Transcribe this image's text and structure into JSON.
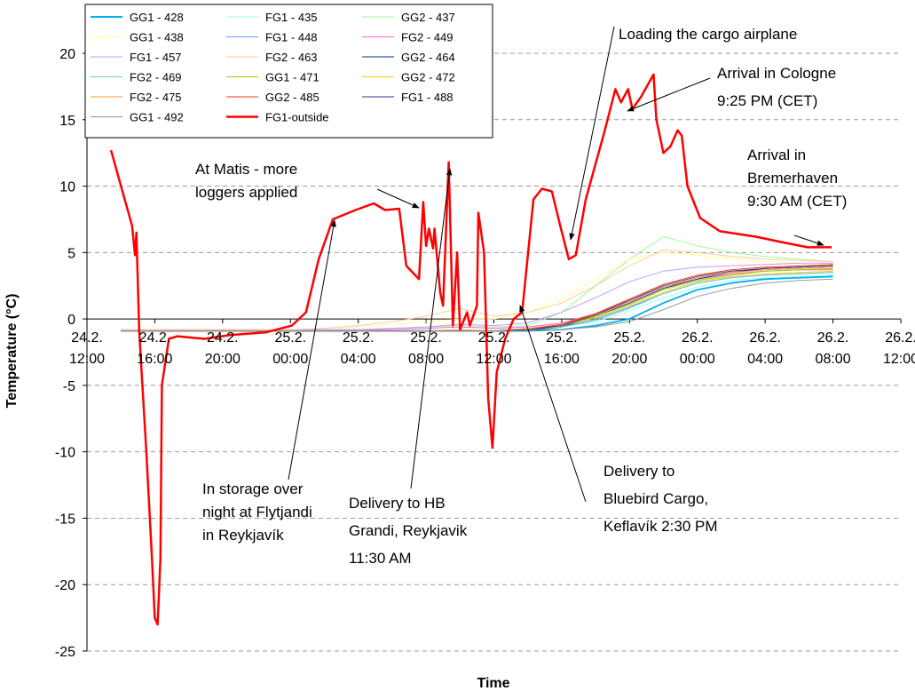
{
  "chart_data": {
    "type": "line",
    "y_label": "Temperature (°C)",
    "x_label": "Time",
    "xlim": [
      "24.2. 12:00",
      "26.2. 12:00"
    ],
    "xticks": [
      "24.2. 12:00",
      "24.2. 16:00",
      "24.2. 20:00",
      "25.2. 00:00",
      "25.2. 04:00",
      "25.2. 08:00",
      "25.2. 12:00",
      "25.2. 16:00",
      "25.2. 20:00",
      "26.2. 00:00",
      "26.2. 04:00",
      "26.2. 08:00",
      "26.2. 12:00"
    ],
    "ylim": [
      -25,
      20
    ],
    "yticks": [
      -25,
      -20,
      -15,
      -10,
      -5,
      0,
      5,
      10,
      15,
      20
    ],
    "grid": true,
    "legend_position": "upper left",
    "x": [
      "24.2. 14:00",
      "24.2. 16:00",
      "24.2. 18:00",
      "24.2. 20:00",
      "24.2. 22:00",
      "25.2. 00:00",
      "25.2. 02:00",
      "25.2. 04:00",
      "25.2. 06:00",
      "25.2. 08:00",
      "25.2. 10:00",
      "25.2. 12:00",
      "25.2. 14:00",
      "25.2. 16:00",
      "25.2. 18:00",
      "25.2. 20:00",
      "25.2. 22:00",
      "26.2. 00:00",
      "26.2. 02:00",
      "26.2. 04:00",
      "26.2. 06:00",
      "26.2. 08:00"
    ],
    "series": [
      {
        "name": "GG1 - 428",
        "color": "#00b0f0",
        "values": [
          -0.9,
          -0.9,
          -0.9,
          -0.9,
          -0.9,
          -0.9,
          -0.9,
          -0.9,
          -0.9,
          -0.9,
          -0.9,
          -0.9,
          -0.9,
          -0.8,
          -0.5,
          0,
          1.2,
          2.2,
          2.7,
          3.0,
          3.1,
          3.2
        ]
      },
      {
        "name": "FG1 - 435",
        "color": "#99ffff",
        "values": [
          -0.9,
          -0.9,
          -0.9,
          -0.9,
          -0.9,
          -0.9,
          -0.9,
          -0.9,
          -0.9,
          -0.9,
          -0.9,
          -0.9,
          -0.8,
          -0.6,
          -0.2,
          0.6,
          1.6,
          2.4,
          2.9,
          3.1,
          3.2,
          3.3
        ]
      },
      {
        "name": "GG2 - 437",
        "color": "#99ff99",
        "values": [
          -0.8,
          -0.8,
          -0.8,
          -0.8,
          -0.8,
          -0.8,
          -0.8,
          -0.8,
          -0.7,
          -0.6,
          -0.5,
          -0.6,
          -0.5,
          0.5,
          2.5,
          4.5,
          6.2,
          5.5,
          5.0,
          4.7,
          4.5,
          4.3
        ]
      },
      {
        "name": "GG1 - 438",
        "color": "#ffff99",
        "values": [
          -0.8,
          -0.8,
          -0.8,
          -0.8,
          -0.8,
          -0.8,
          -0.7,
          -0.6,
          -0.4,
          -0.2,
          0,
          0,
          0.5,
          1.5,
          3.0,
          4.5,
          5.0,
          4.8,
          4.5,
          4.3,
          4.2,
          4.2
        ]
      },
      {
        "name": "FG1 - 448",
        "color": "#6699ff",
        "values": [
          -0.9,
          -0.9,
          -0.9,
          -0.9,
          -0.9,
          -0.9,
          -0.9,
          -0.9,
          -0.9,
          -0.9,
          -0.9,
          -0.9,
          -0.8,
          -0.6,
          0,
          0.9,
          1.9,
          2.7,
          3.1,
          3.3,
          3.4,
          3.5
        ]
      },
      {
        "name": "FG2 - 449",
        "color": "#ff66cc",
        "values": [
          -0.8,
          -0.8,
          -0.8,
          -0.8,
          -0.8,
          -0.8,
          -0.8,
          -0.8,
          -0.8,
          -0.7,
          -0.6,
          -0.7,
          -0.6,
          -0.3,
          0.4,
          1.4,
          2.4,
          3.0,
          3.4,
          3.6,
          3.7,
          3.7
        ]
      },
      {
        "name": "FG1 - 457",
        "color": "#cc99ff",
        "values": [
          -0.8,
          -0.8,
          -0.8,
          -0.8,
          -0.8,
          -0.8,
          -0.8,
          -0.8,
          -0.7,
          -0.6,
          -0.4,
          -0.5,
          -0.3,
          0.5,
          1.6,
          2.8,
          3.6,
          3.9,
          4.0,
          4.1,
          4.2,
          4.2
        ]
      },
      {
        "name": "FG2 - 463",
        "color": "#ffcc99",
        "values": [
          -0.8,
          -0.8,
          -0.8,
          -0.8,
          -0.8,
          -0.8,
          -0.7,
          -0.5,
          -0.2,
          0.2,
          0.8,
          0.2,
          0.5,
          1.2,
          2.5,
          4.0,
          5.2,
          5.0,
          4.7,
          4.5,
          4.4,
          4.3
        ]
      },
      {
        "name": "GG2 - 464",
        "color": "#003399",
        "values": [
          -0.9,
          -0.9,
          -0.9,
          -0.9,
          -0.9,
          -0.9,
          -0.9,
          -0.9,
          -0.9,
          -0.9,
          -0.9,
          -0.9,
          -0.9,
          -0.6,
          0.2,
          1.2,
          2.3,
          3.0,
          3.5,
          3.8,
          3.9,
          4.0
        ]
      },
      {
        "name": "FG2 - 469",
        "color": "#66cccc",
        "values": [
          -0.9,
          -0.9,
          -0.9,
          -0.9,
          -0.9,
          -0.9,
          -0.9,
          -0.9,
          -0.9,
          -0.9,
          -0.9,
          -0.9,
          -0.8,
          -0.6,
          -0.1,
          0.8,
          1.9,
          2.7,
          3.1,
          3.3,
          3.4,
          3.5
        ]
      },
      {
        "name": "GG1 - 471",
        "color": "#99cc00",
        "values": [
          -0.9,
          -0.9,
          -0.9,
          -0.9,
          -0.9,
          -0.9,
          -0.9,
          -0.9,
          -0.9,
          -0.9,
          -0.9,
          -0.9,
          -0.8,
          -0.5,
          0.2,
          1.1,
          2.2,
          2.9,
          3.3,
          3.6,
          3.7,
          3.8
        ]
      },
      {
        "name": "GG2 - 472",
        "color": "#ffcc00",
        "values": [
          -0.9,
          -0.9,
          -0.9,
          -0.9,
          -0.9,
          -0.9,
          -0.9,
          -0.9,
          -0.9,
          -0.9,
          -0.9,
          -0.9,
          -0.8,
          -0.5,
          0.1,
          1.0,
          2.0,
          2.8,
          3.2,
          3.4,
          3.5,
          3.6
        ]
      },
      {
        "name": "FG2 - 475",
        "color": "#ff9933",
        "values": [
          -0.9,
          -0.9,
          -0.9,
          -0.9,
          -0.9,
          -0.9,
          -0.9,
          -0.9,
          -0.9,
          -0.9,
          -0.8,
          -0.9,
          -0.7,
          -0.4,
          0.3,
          1.3,
          2.4,
          3.1,
          3.5,
          3.7,
          3.8,
          3.9
        ]
      },
      {
        "name": "GG2 - 485",
        "color": "#ff3300",
        "values": [
          -0.9,
          -0.9,
          -0.9,
          -0.9,
          -0.9,
          -0.9,
          -0.9,
          -0.9,
          -0.9,
          -0.9,
          -0.9,
          -0.9,
          -0.8,
          -0.4,
          0.4,
          1.5,
          2.6,
          3.3,
          3.7,
          3.9,
          4.0,
          4.1
        ]
      },
      {
        "name": "FG1 - 488",
        "color": "#333399",
        "values": [
          -0.9,
          -0.9,
          -0.9,
          -0.9,
          -0.9,
          -0.9,
          -0.9,
          -0.9,
          -0.9,
          -0.9,
          -0.9,
          -0.9,
          -0.8,
          -0.5,
          0.3,
          1.4,
          2.5,
          3.2,
          3.6,
          3.8,
          3.9,
          4.0
        ]
      },
      {
        "name": "GG1 - 492",
        "color": "#999999",
        "values": [
          -0.9,
          -0.9,
          -0.9,
          -0.9,
          -0.9,
          -0.9,
          -0.9,
          -0.9,
          -0.9,
          -0.9,
          -0.9,
          -0.9,
          -0.9,
          -0.8,
          -0.6,
          -0.2,
          0.7,
          1.7,
          2.3,
          2.7,
          2.9,
          3.0
        ]
      },
      {
        "name": "FG1-outside",
        "color": "#ff0000",
        "x": [
          "24.2. 13:25",
          "24.2. 14:40",
          "24.2. 14:50",
          "24.2. 14:55",
          "24.2. 15:05",
          "24.2. 15:30",
          "24.2. 15:50",
          "24.2. 16:00",
          "24.2. 16:10",
          "24.2. 16:20",
          "24.2. 16:25",
          "24.2. 16:50",
          "24.2. 17:20",
          "24.2. 18:55",
          "24.2. 20:30",
          "24.2. 22:35",
          "25.2. 00:05",
          "25.2. 00:55",
          "25.2. 01:40",
          "25.2. 02:30",
          "25.2. 03:50",
          "25.2. 04:55",
          "25.2. 05:35",
          "25.2. 06:25",
          "25.2. 06:50",
          "25.2. 07:35",
          "25.2. 07:50",
          "25.2. 08:00",
          "25.2. 08:10",
          "25.2. 08:25",
          "25.2. 08:30",
          "25.2. 08:50",
          "25.2. 09:00",
          "25.2. 09:20",
          "25.2. 09:35",
          "25.2. 09:50",
          "25.2. 10:00",
          "25.2. 10:25",
          "25.2. 10:35",
          "25.2. 11:00",
          "25.2. 11:05",
          "25.2. 11:25",
          "25.2. 11:40",
          "25.2. 11:55",
          "25.2. 12:10",
          "25.2. 12:40",
          "25.2. 13:10",
          "25.2. 13:40",
          "25.2. 14:20",
          "25.2. 14:50",
          "25.2. 15:25",
          "25.2. 15:55",
          "25.2. 16:25",
          "25.2. 16:50",
          "25.2. 17:25",
          "25.2. 18:30",
          "25.2. 19:10",
          "25.2. 19:30",
          "25.2. 19:55",
          "25.2. 20:10",
          "25.2. 20:40",
          "25.2. 21:25",
          "25.2. 21:35",
          "25.2. 22:00",
          "25.2. 22:25",
          "25.2. 22:50",
          "25.2. 23:05",
          "25.2. 23:25",
          "26.2. 00:10",
          "26.2. 01:20",
          "26.2. 03:25",
          "26.2. 04:55",
          "26.2. 06:30",
          "26.2. 07:55"
        ],
        "values": [
          12.7,
          7,
          4.8,
          6.5,
          -1,
          -10,
          -18,
          -22.5,
          -23,
          -18,
          -5,
          -1.5,
          -1.3,
          -1.5,
          -1.2,
          -1.0,
          -0.5,
          0.5,
          4.5,
          7.5,
          8.2,
          8.7,
          8.2,
          8.3,
          4,
          3,
          8.8,
          5.5,
          6.8,
          5.3,
          6.8,
          2,
          1,
          11.8,
          -0.5,
          5,
          -0.8,
          0.5,
          -0.5,
          1,
          8,
          5,
          -6,
          -9.7,
          -4,
          -1.5,
          0,
          0.5,
          9,
          9.8,
          9.6,
          7,
          4.5,
          4.8,
          9,
          14,
          17.3,
          16.3,
          17.3,
          15.8,
          16.7,
          18.4,
          15,
          12.5,
          13,
          14.2,
          13.8,
          10,
          7.6,
          6.6,
          6.2,
          5.8,
          5.4,
          5.4
        ]
      }
    ],
    "annotations": [
      {
        "lines": [
          "At Matis - more",
          "loggers applied"
        ]
      },
      {
        "lines": [
          "In storage over",
          "night at Flytjandi",
          "in Reykjavík"
        ]
      },
      {
        "lines": [
          "Delivery to HB",
          "Grandi, Reykjavik",
          "11:30 AM"
        ]
      },
      {
        "lines": [
          "Delivery to",
          "Bluebird Cargo,",
          "Keflavík 2:30 PM"
        ]
      },
      {
        "lines": [
          "Loading the cargo airplane"
        ]
      },
      {
        "lines": [
          "Arrival in Cologne",
          "9:25 PM (CET)"
        ]
      },
      {
        "lines": [
          "Arrival in",
          "Bremerhaven",
          "9:30 AM (CET)"
        ]
      }
    ]
  }
}
